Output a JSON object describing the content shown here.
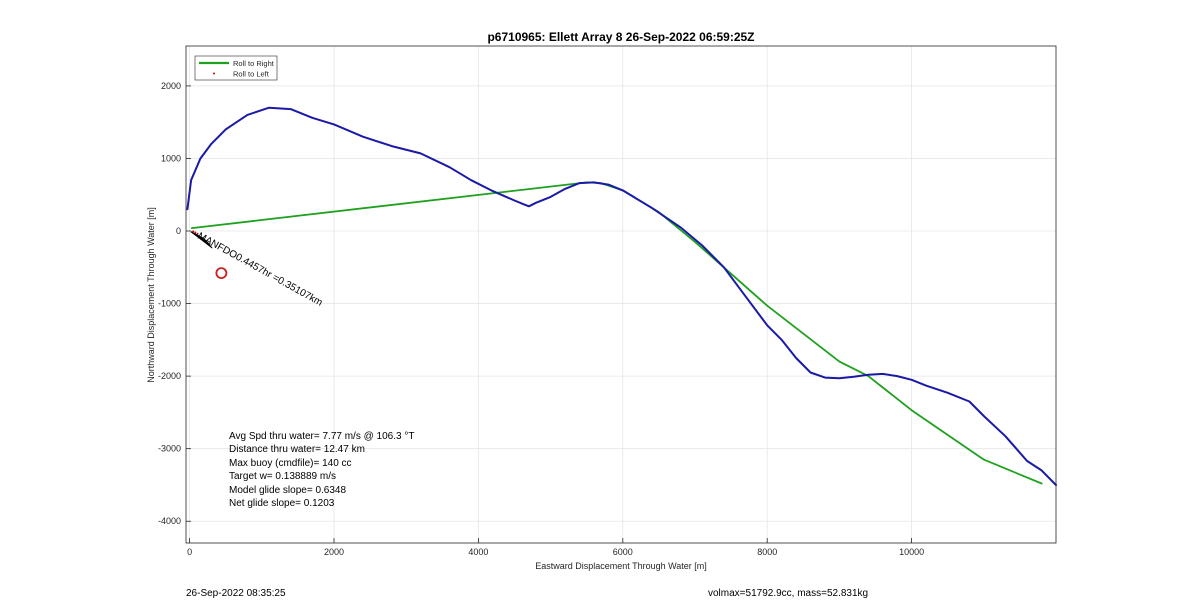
{
  "chart_data": {
    "type": "line",
    "title": "p6710965: Ellett Array 8 26-Sep-2022 06:59:25Z",
    "xlabel": "Eastward Displacement Through Water [m]",
    "ylabel": "Northward Displacement Through Water [m]",
    "xlim": [
      -50,
      12000
    ],
    "ylim": [
      -4300,
      2550
    ],
    "xticks": [
      0,
      2000,
      4000,
      6000,
      8000,
      10000
    ],
    "yticks": [
      -4000,
      -3000,
      -2000,
      -1000,
      0,
      1000,
      2000
    ],
    "grid": true,
    "legend": {
      "placement": "top-left",
      "entries": [
        "Roll to Right",
        "Roll to Left"
      ]
    },
    "series": [
      {
        "name": "Roll to Right",
        "color": "#1fa01f",
        "points": [
          [
            30,
            40
          ],
          [
            5500,
            670
          ],
          [
            5700,
            660
          ],
          [
            6000,
            560
          ],
          [
            6500,
            260
          ],
          [
            7000,
            -150
          ],
          [
            8000,
            -1030
          ],
          [
            9000,
            -1800
          ],
          [
            9400,
            -2000
          ],
          [
            10000,
            -2470
          ],
          [
            11000,
            -3150
          ],
          [
            11800,
            -3480
          ]
        ]
      },
      {
        "name": "Roll to Left",
        "color": "#cc0000",
        "points": [
          [
            50,
            -5
          ],
          [
            80,
            -20
          ],
          [
            110,
            -40
          ]
        ]
      },
      {
        "name": "",
        "color": "#1a1aa6",
        "points": [
          [
            -30,
            300
          ],
          [
            20,
            700
          ],
          [
            150,
            1000
          ],
          [
            300,
            1200
          ],
          [
            500,
            1400
          ],
          [
            800,
            1600
          ],
          [
            1100,
            1700
          ],
          [
            1400,
            1680
          ],
          [
            1700,
            1560
          ],
          [
            2000,
            1470
          ],
          [
            2400,
            1300
          ],
          [
            2800,
            1170
          ],
          [
            3200,
            1070
          ],
          [
            3600,
            880
          ],
          [
            3900,
            700
          ],
          [
            4200,
            550
          ],
          [
            4500,
            420
          ],
          [
            4650,
            360
          ],
          [
            4700,
            340
          ],
          [
            4800,
            390
          ],
          [
            5000,
            470
          ],
          [
            5200,
            580
          ],
          [
            5400,
            660
          ],
          [
            5600,
            670
          ],
          [
            5800,
            640
          ],
          [
            6000,
            560
          ],
          [
            6400,
            320
          ],
          [
            6800,
            50
          ],
          [
            7100,
            -200
          ],
          [
            7400,
            -500
          ],
          [
            7700,
            -900
          ],
          [
            8000,
            -1300
          ],
          [
            8200,
            -1500
          ],
          [
            8400,
            -1750
          ],
          [
            8600,
            -1950
          ],
          [
            8800,
            -2020
          ],
          [
            9000,
            -2030
          ],
          [
            9200,
            -2010
          ],
          [
            9400,
            -1980
          ],
          [
            9600,
            -1970
          ],
          [
            9800,
            -2000
          ],
          [
            10000,
            -2050
          ],
          [
            10200,
            -2130
          ],
          [
            10500,
            -2230
          ],
          [
            10800,
            -2350
          ],
          [
            11000,
            -2550
          ],
          [
            11300,
            -2830
          ],
          [
            11600,
            -3170
          ],
          [
            11800,
            -3300
          ],
          [
            12000,
            -3500
          ]
        ]
      }
    ],
    "annotations": {
      "waypoint_label": "MANFDO0.4457hr =0.35107km",
      "waypoint_marker": [
        440,
        -580
      ],
      "marker_color": "#cc2020"
    }
  },
  "stats": {
    "avg_spd": "Avg Spd thru water=  7.77 m/s @ 106.3 °T",
    "distance": "Distance thru water= 12.47 km",
    "max_buoy": "Max buoy (cmdfile)= 140 cc",
    "target_w": "Target w= 0.138889 m/s",
    "model_glide": "Model glide slope= 0.6348",
    "net_glide": "Net glide slope= 0.1203"
  },
  "footer": {
    "timestamp": "26-Sep-2022 08:35:25",
    "volmass": "volmax=51792.9cc, mass=52.831kg"
  }
}
